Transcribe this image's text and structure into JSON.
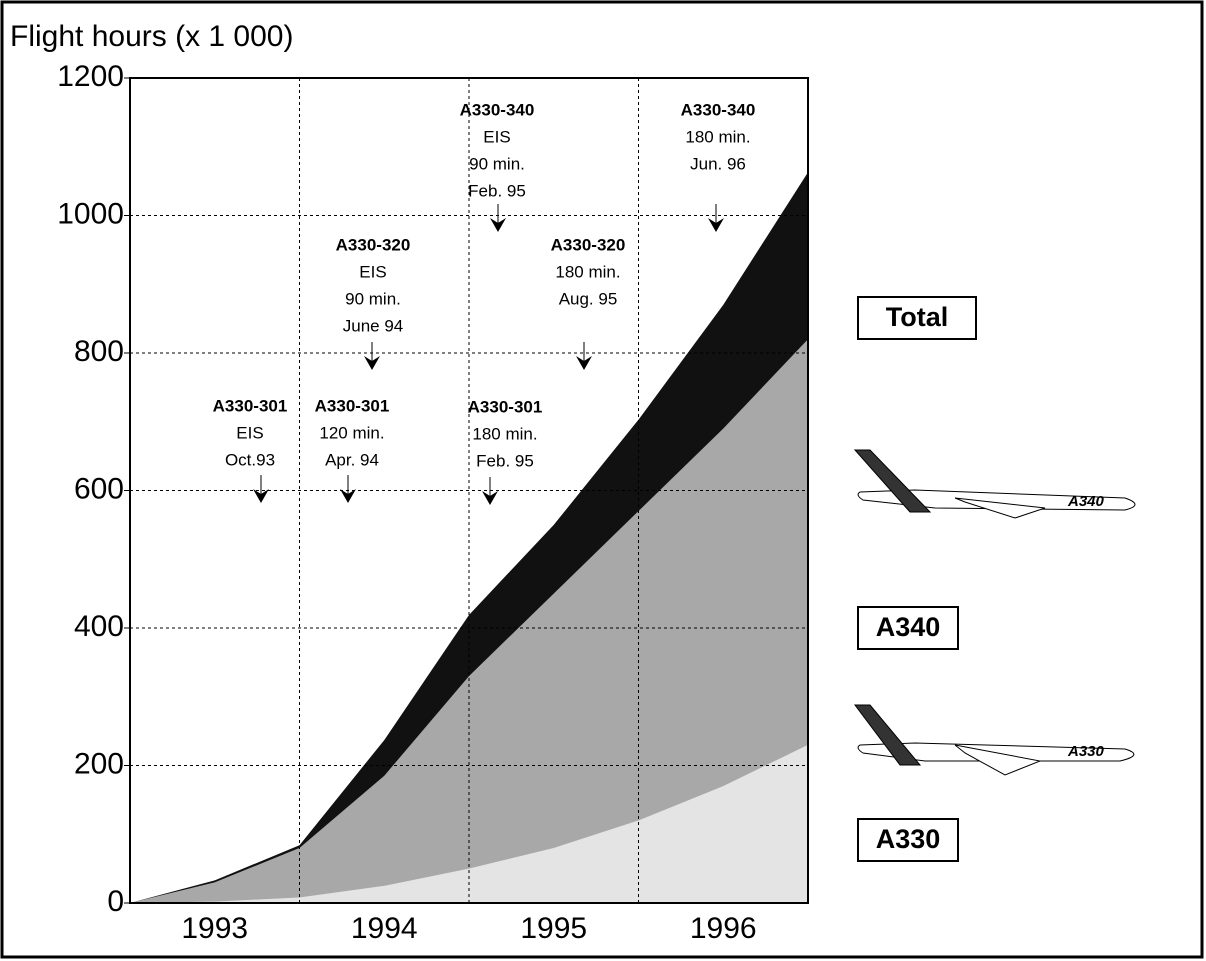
{
  "chart_data": {
    "type": "area",
    "stacked": true,
    "title": "Flight hours (x 1 000)",
    "x": [
      1993,
      1993.5,
      1994,
      1994.5,
      1995,
      1995.5,
      1996,
      1996.5,
      1997
    ],
    "series": [
      {
        "name": "A330",
        "color": "#e4e4e4",
        "values": [
          0,
          2,
          8,
          25,
          50,
          80,
          120,
          170,
          230
        ]
      },
      {
        "name": "A340",
        "color": "#a8a8a8",
        "values": [
          0,
          28,
          72,
          160,
          280,
          370,
          450,
          520,
          590
        ]
      },
      {
        "name": "Total",
        "color": "#111111",
        "values": [
          0,
          3,
          4,
          52,
          89,
          100,
          133,
          180,
          243
        ]
      }
    ],
    "plane_labels": [
      "A340",
      "A330"
    ],
    "xlim": [
      1993,
      1997
    ],
    "xticks": [
      {
        "value": 1993.5,
        "label": "1993"
      },
      {
        "value": 1994.5,
        "label": "1994"
      },
      {
        "value": 1995.5,
        "label": "1995"
      },
      {
        "value": 1996.5,
        "label": "1996"
      }
    ],
    "xgrid": [
      1994,
      1995,
      1996
    ],
    "ylim": [
      0,
      1200
    ],
    "yticks": [
      0,
      200,
      400,
      600,
      800,
      1000,
      1200
    ],
    "grid": true,
    "annotations": [
      [
        "A330-301",
        "EIS",
        "Oct.93"
      ],
      [
        "A330-301",
        "120 min.",
        "Apr. 94"
      ],
      [
        "A330-320",
        "EIS",
        "90 min.",
        "June 94"
      ],
      [
        "A330-340",
        "EIS",
        "90 min.",
        "Feb. 95"
      ],
      [
        "A330-320",
        "180 min.",
        "Aug. 95"
      ],
      [
        "A330-301",
        "180 min.",
        "Feb. 95"
      ],
      [
        "A330-340",
        "180 min.",
        "Jun. 96"
      ]
    ]
  }
}
